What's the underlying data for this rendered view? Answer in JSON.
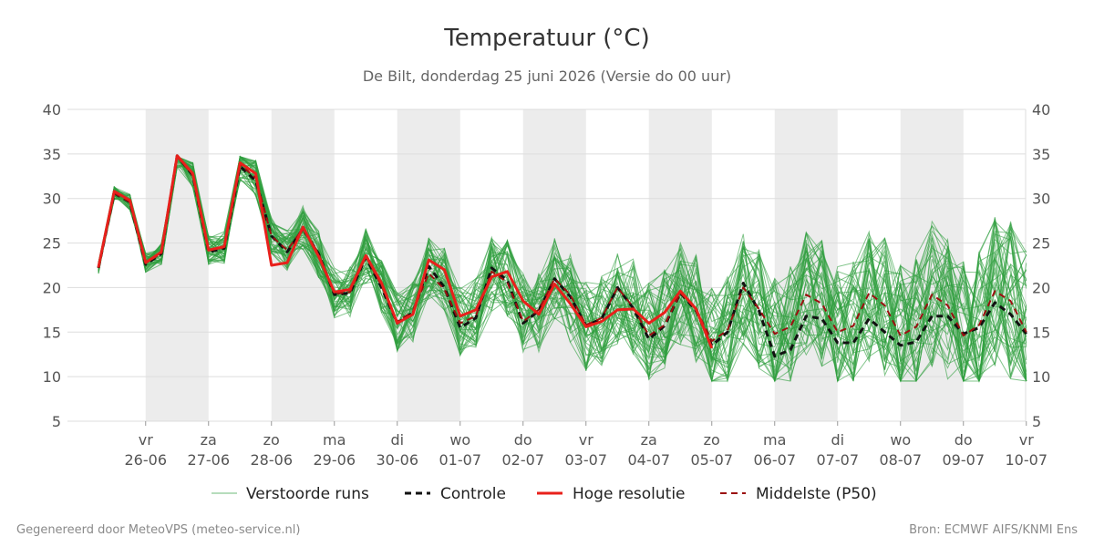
{
  "header": {
    "title": "Temperatuur (°C)",
    "subtitle": "De Bilt, donderdag 25 juni 2026 (Versie do 00 uur)"
  },
  "footer": {
    "left": "Gegenereerd door MeteoVPS (meteo-service.nl)",
    "right": "Bron: ECMWF AIFS/KNMI Ens"
  },
  "colors": {
    "ensemble": "#2e9e3e",
    "control": "#111111",
    "hires": "#e8201b",
    "median": "#9b1010",
    "weekend_band": "#ececec",
    "grid": "#dddddd"
  },
  "chart_data": {
    "type": "line",
    "title": "Temperatuur (°C)",
    "subtitle": "De Bilt, donderdag 25 juni 2026 (Versie do 00 uur)",
    "ylim": [
      5,
      40
    ],
    "yticks": [
      5,
      10,
      15,
      20,
      25,
      30,
      35,
      40
    ],
    "y_axis_both_sides": true,
    "grid": true,
    "legend_position": "bottom",
    "x_step_hours": 6,
    "x_labels": [
      {
        "day": "vr",
        "date": "26-06"
      },
      {
        "day": "za",
        "date": "27-06"
      },
      {
        "day": "zo",
        "date": "28-06"
      },
      {
        "day": "ma",
        "date": "29-06"
      },
      {
        "day": "di",
        "date": "30-06"
      },
      {
        "day": "wo",
        "date": "01-07"
      },
      {
        "day": "do",
        "date": "02-07"
      },
      {
        "day": "vr",
        "date": "03-07"
      },
      {
        "day": "za",
        "date": "04-07"
      },
      {
        "day": "zo",
        "date": "05-07"
      },
      {
        "day": "ma",
        "date": "06-07"
      },
      {
        "day": "di",
        "date": "07-07"
      },
      {
        "day": "wo",
        "date": "08-07"
      },
      {
        "day": "do",
        "date": "09-07"
      },
      {
        "day": "vr",
        "date": "10-07"
      }
    ],
    "shaded_days": [
      "26-06",
      "28-06",
      "30-06",
      "02-07",
      "04-07",
      "06-07",
      "08-07"
    ],
    "series": [
      {
        "name": "Hoge resolutie",
        "style": "solid",
        "values": [
          22.3,
          30.8,
          29.8,
          22.8,
          24.0,
          34.8,
          32.8,
          24.2,
          24.6,
          34.0,
          32.8,
          22.5,
          22.8,
          26.8,
          23.5,
          19.5,
          19.8,
          23.6,
          20.5,
          16.0,
          17.0,
          23.1,
          22.0,
          16.8,
          17.5,
          21.2,
          21.8,
          18.5,
          17.0,
          20.4,
          18.2,
          15.6,
          16.2,
          17.5,
          17.6,
          16.0,
          17.2,
          19.6,
          17.6,
          13.2
        ]
      },
      {
        "name": "Controle",
        "style": "dashed",
        "values": [
          22.2,
          30.6,
          29.6,
          22.6,
          23.8,
          34.8,
          32.6,
          24.0,
          24.4,
          33.6,
          32.0,
          25.8,
          24.0,
          26.6,
          23.8,
          19.2,
          19.4,
          23.4,
          20.0,
          16.0,
          17.2,
          22.4,
          20.0,
          15.5,
          16.6,
          22.2,
          20.8,
          16.0,
          17.4,
          21.0,
          19.0,
          15.7,
          16.5,
          20.0,
          17.7,
          14.2,
          15.7,
          19.4,
          17.4,
          13.5,
          15.0,
          20.5,
          17.4,
          12.3,
          13.0,
          16.8,
          16.5,
          13.8,
          13.8,
          16.5,
          15.0,
          13.5,
          13.9,
          16.8,
          16.8,
          14.8,
          15.5,
          18.3,
          17.0,
          14.8
        ]
      },
      {
        "name": "Middelste (P50)",
        "style": "dashed",
        "values": [
          22.2,
          30.6,
          29.6,
          22.8,
          23.8,
          34.7,
          32.6,
          24.2,
          24.5,
          33.8,
          32.3,
          25.8,
          24.2,
          26.6,
          23.8,
          19.3,
          19.5,
          23.5,
          20.2,
          16.2,
          17.3,
          21.6,
          19.8,
          16.0,
          16.8,
          21.8,
          20.6,
          16.2,
          17.5,
          21.0,
          19.2,
          15.8,
          16.6,
          20.0,
          17.8,
          14.6,
          15.8,
          19.4,
          17.6,
          14.0,
          15.2,
          20.0,
          17.6,
          14.8,
          15.6,
          19.2,
          18.2,
          15.0,
          15.7,
          19.4,
          18.0,
          14.6,
          15.6,
          19.2,
          18.0,
          14.6,
          15.8,
          19.6,
          18.5,
          15.0
        ]
      }
    ],
    "legend": [
      "Verstoorde runs",
      "Controle",
      "Hoge resolutie",
      "Middelste (P50)"
    ]
  }
}
